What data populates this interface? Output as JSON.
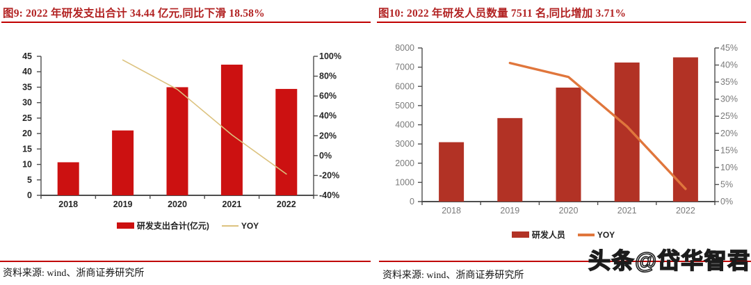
{
  "colors": {
    "title": "#B22222",
    "rule": "#C00000",
    "left_bar": "#CC1111",
    "left_line": "#DCC27E",
    "right_bar": "#B23225",
    "right_line": "#E0763C"
  },
  "panels": [
    {
      "title": "图9: 2022 年研发支出合计 34.44 亿元,同比下滑 18.58%",
      "source": "资料来源: wind、浙商证券研究所",
      "legend": [
        {
          "label": "研发支出合计(亿元)",
          "swatch": "bar"
        },
        {
          "label": "YOY",
          "swatch": "line"
        }
      ]
    },
    {
      "title": "图10: 2022 年研发人员数量 7511 名,同比增加 3.71%",
      "source": "资料来源: wind、浙商证券研究所",
      "legend": [
        {
          "label": "研发人员",
          "swatch": "bar"
        },
        {
          "label": "YOY",
          "swatch": "line"
        }
      ]
    }
  ],
  "watermark": {
    "text": "头条@岱华智君"
  },
  "chart_data": [
    {
      "type": "bar",
      "title": "2022 年研发支出合计 34.44 亿元,同比下滑 18.58%",
      "categories": [
        "2018",
        "2019",
        "2020",
        "2021",
        "2022"
      ],
      "series": [
        {
          "name": "研发支出合计(亿元)",
          "type": "bar",
          "axis": "left",
          "values": [
            10.7,
            21.0,
            35.0,
            42.3,
            34.44
          ],
          "color": "#CC1111"
        },
        {
          "name": "YOY",
          "type": "line",
          "axis": "right",
          "values": [
            null,
            96.3,
            66.7,
            20.9,
            -18.58
          ],
          "color": "#DCC27E"
        }
      ],
      "left_axis": {
        "min": 0,
        "max": 45,
        "step": 5
      },
      "right_axis": {
        "min": -40,
        "max": 100,
        "step": 20,
        "suffix": "%"
      },
      "grid": false,
      "legend_position": "bottom",
      "xlabel": "",
      "ylabel": ""
    },
    {
      "type": "bar",
      "title": "2022 年研发人员数量 7511 名,同比增加 3.71%",
      "categories": [
        "2018",
        "2019",
        "2020",
        "2021",
        "2022"
      ],
      "series": [
        {
          "name": "研发人员",
          "type": "bar",
          "axis": "left",
          "values": [
            3093,
            4349,
            5936,
            7242,
            7511
          ],
          "color": "#B23225"
        },
        {
          "name": "YOY",
          "type": "line",
          "axis": "right",
          "values": [
            null,
            40.6,
            36.5,
            22.0,
            3.71
          ],
          "color": "#E0763C"
        }
      ],
      "left_axis": {
        "min": 0,
        "max": 8000,
        "step": 1000
      },
      "right_axis": {
        "min": 0,
        "max": 45,
        "step": 5,
        "suffix": "%"
      },
      "grid": false,
      "legend_position": "bottom",
      "xlabel": "",
      "ylabel": ""
    }
  ]
}
